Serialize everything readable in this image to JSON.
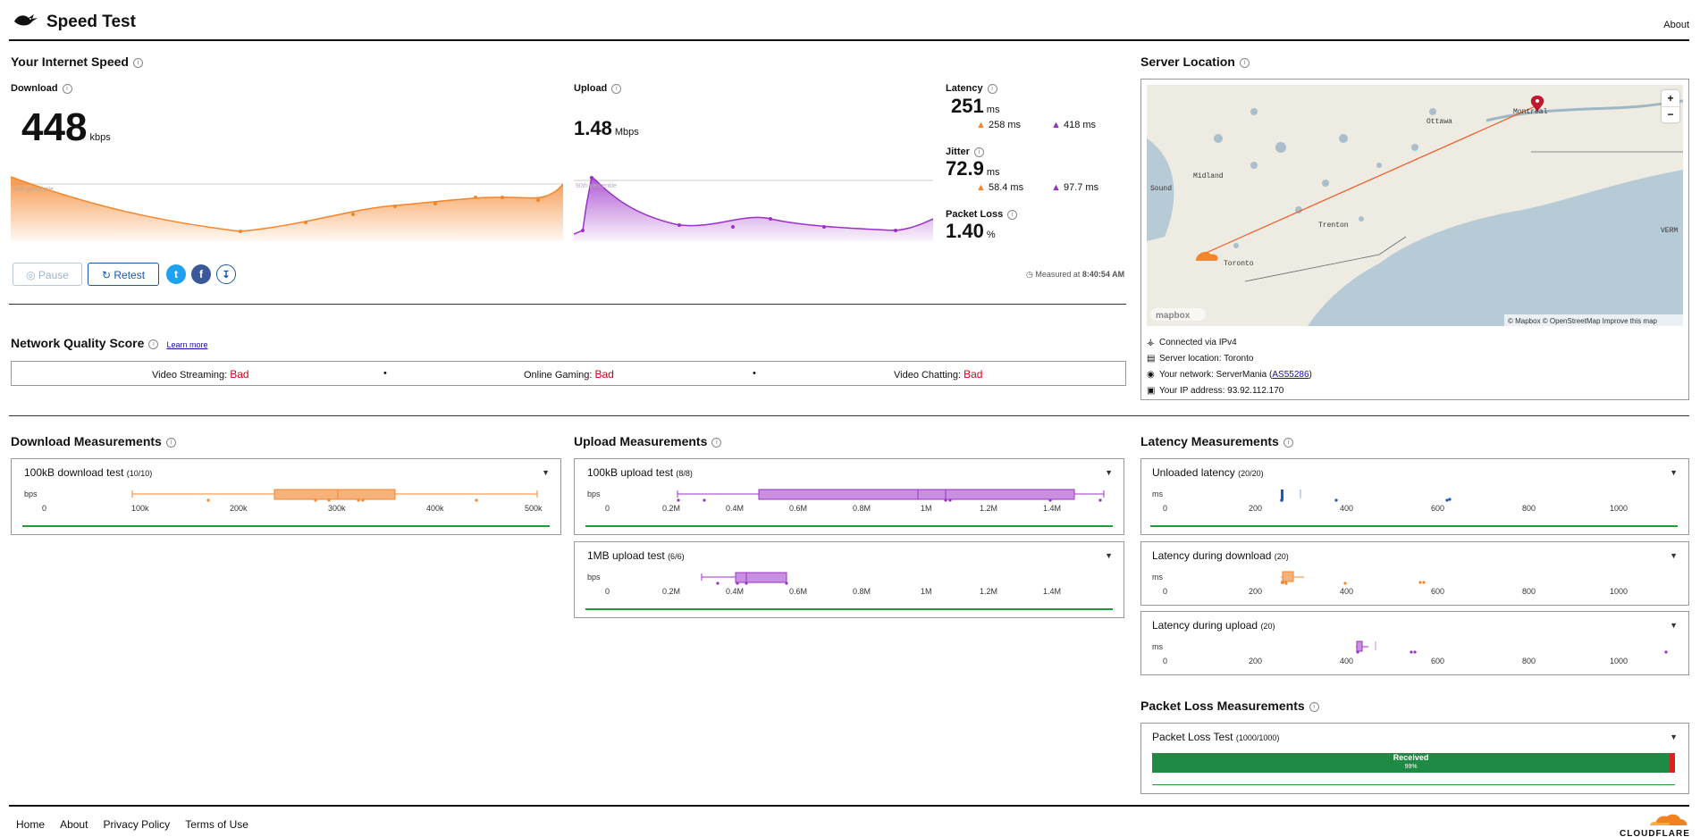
{
  "header": {
    "title": "Speed Test",
    "about": "About"
  },
  "internet_speed": {
    "title": "Your Internet Speed",
    "download": {
      "label": "Download",
      "value": "448",
      "unit": "kbps",
      "percentile_label": "90th percentile"
    },
    "upload": {
      "label": "Upload",
      "value": "1.48",
      "unit": "Mbps",
      "percentile_label": "90th percentile"
    },
    "latency": {
      "label": "Latency",
      "value": "251",
      "unit": "ms",
      "down": "258 ms",
      "up": "418 ms"
    },
    "jitter": {
      "label": "Jitter",
      "value": "72.9",
      "unit": "ms",
      "down": "58.4 ms",
      "up": "97.7 ms"
    },
    "packet_loss": {
      "label": "Packet Loss",
      "value": "1.40",
      "unit": "%"
    },
    "buttons": {
      "pause": "Pause",
      "retest": "Retest"
    },
    "measured_at_prefix": "Measured at",
    "measured_at": "8:40:54 AM"
  },
  "server_location": {
    "title": "Server Location",
    "map_labels": [
      "Ottawa",
      "Montréal",
      "Midland",
      "Sound",
      "Trenton",
      "Toronto",
      "VERM"
    ],
    "attribution": "© Mapbox © OpenStreetMap  Improve this map",
    "mapbox_logo": "mapbox",
    "zoom_in": "+",
    "zoom_out": "−",
    "info": [
      {
        "icon": "network-icon",
        "text": "Connected via IPv4"
      },
      {
        "icon": "server-icon",
        "text": "Server location: Toronto"
      },
      {
        "icon": "location-pin-icon",
        "text": "Your network: ServerMania (",
        "link": "AS55286",
        "after": ")"
      },
      {
        "icon": "window-icon",
        "text": "Your IP address: 93.92.112.170"
      }
    ]
  },
  "network_quality": {
    "title": "Network Quality Score",
    "learn_more": "Learn more",
    "items": [
      {
        "label": "Video Streaming:",
        "value": "Bad"
      },
      {
        "label": "Online Gaming:",
        "value": "Bad"
      },
      {
        "label": "Video Chatting:",
        "value": "Bad"
      }
    ],
    "separator": "•"
  },
  "download_measurements": {
    "title": "Download Measurements",
    "tests": [
      {
        "name": "100kB download test",
        "count": "(10/10)",
        "unit": "bps",
        "ticks": [
          "0",
          "100k",
          "200k",
          "300k",
          "400k",
          "500k"
        ]
      }
    ]
  },
  "upload_measurements": {
    "title": "Upload Measurements",
    "tests": [
      {
        "name": "100kB upload test",
        "count": "(8/8)",
        "unit": "bps",
        "ticks": [
          "0",
          "0.2M",
          "0.4M",
          "0.6M",
          "0.8M",
          "1M",
          "1.2M",
          "1.4M"
        ]
      },
      {
        "name": "1MB upload test",
        "count": "(6/6)",
        "unit": "bps",
        "ticks": [
          "0",
          "0.2M",
          "0.4M",
          "0.6M",
          "0.8M",
          "1M",
          "1.2M",
          "1.4M"
        ]
      }
    ]
  },
  "latency_measurements": {
    "title": "Latency Measurements",
    "tests": [
      {
        "name": "Unloaded latency",
        "count": "(20/20)",
        "unit": "ms",
        "ticks": [
          "0",
          "200",
          "400",
          "600",
          "800",
          "1000"
        ]
      },
      {
        "name": "Latency during download",
        "count": "(20)",
        "unit": "ms",
        "ticks": [
          "0",
          "200",
          "400",
          "600",
          "800",
          "1000"
        ]
      },
      {
        "name": "Latency during upload",
        "count": "(20)",
        "unit": "ms",
        "ticks": [
          "0",
          "200",
          "400",
          "600",
          "800",
          "1000"
        ]
      }
    ]
  },
  "packet_loss_measurements": {
    "title": "Packet Loss Measurements",
    "test": {
      "name": "Packet Loss Test",
      "count": "(1000/1000)",
      "received_label": "Received",
      "received_pct": "99%",
      "received_fraction": 0.99
    }
  },
  "footer": {
    "links": [
      "Home",
      "About",
      "Privacy Policy",
      "Terms of Use"
    ],
    "brand": "CLOUDFLARE"
  },
  "colors": {
    "download": "#f5852b",
    "upload": "#9b30c8",
    "latency": "#1a56c4",
    "bad": "#d0021b",
    "good": "#1f9a3a",
    "loss": "#e02020"
  }
}
